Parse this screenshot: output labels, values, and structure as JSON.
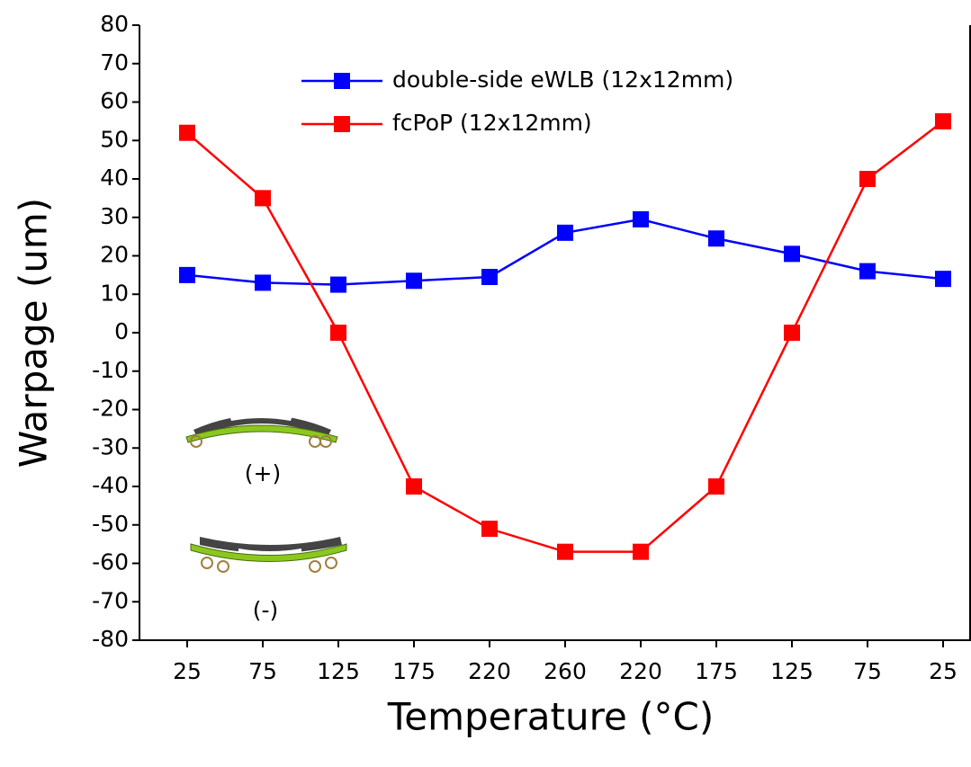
{
  "chart_data": {
    "type": "line",
    "x_label": "Temperature (°C)",
    "y_label": "Warpage (um)",
    "categories": [
      "25",
      "75",
      "125",
      "175",
      "220",
      "260",
      "220",
      "175",
      "125",
      "75",
      "25"
    ],
    "series": [
      {
        "name": "double-side eWLB (12x12mm)",
        "color": "#0000ff",
        "values": [
          15,
          13,
          12.5,
          13.5,
          14.5,
          26,
          29.5,
          24.5,
          20.5,
          16,
          14
        ]
      },
      {
        "name": "fcPoP (12x12mm)",
        "color": "#ff0000",
        "values": [
          52,
          35,
          0,
          -40,
          -51,
          -57,
          -57,
          -40,
          0,
          40,
          55
        ]
      }
    ],
    "ylim": [
      -80,
      80
    ],
    "yticks": [
      -80,
      -70,
      -60,
      -50,
      -40,
      -30,
      -20,
      -10,
      0,
      10,
      20,
      30,
      40,
      50,
      60,
      70,
      80
    ],
    "annotations": [
      "(+)",
      "(-)"
    ]
  }
}
